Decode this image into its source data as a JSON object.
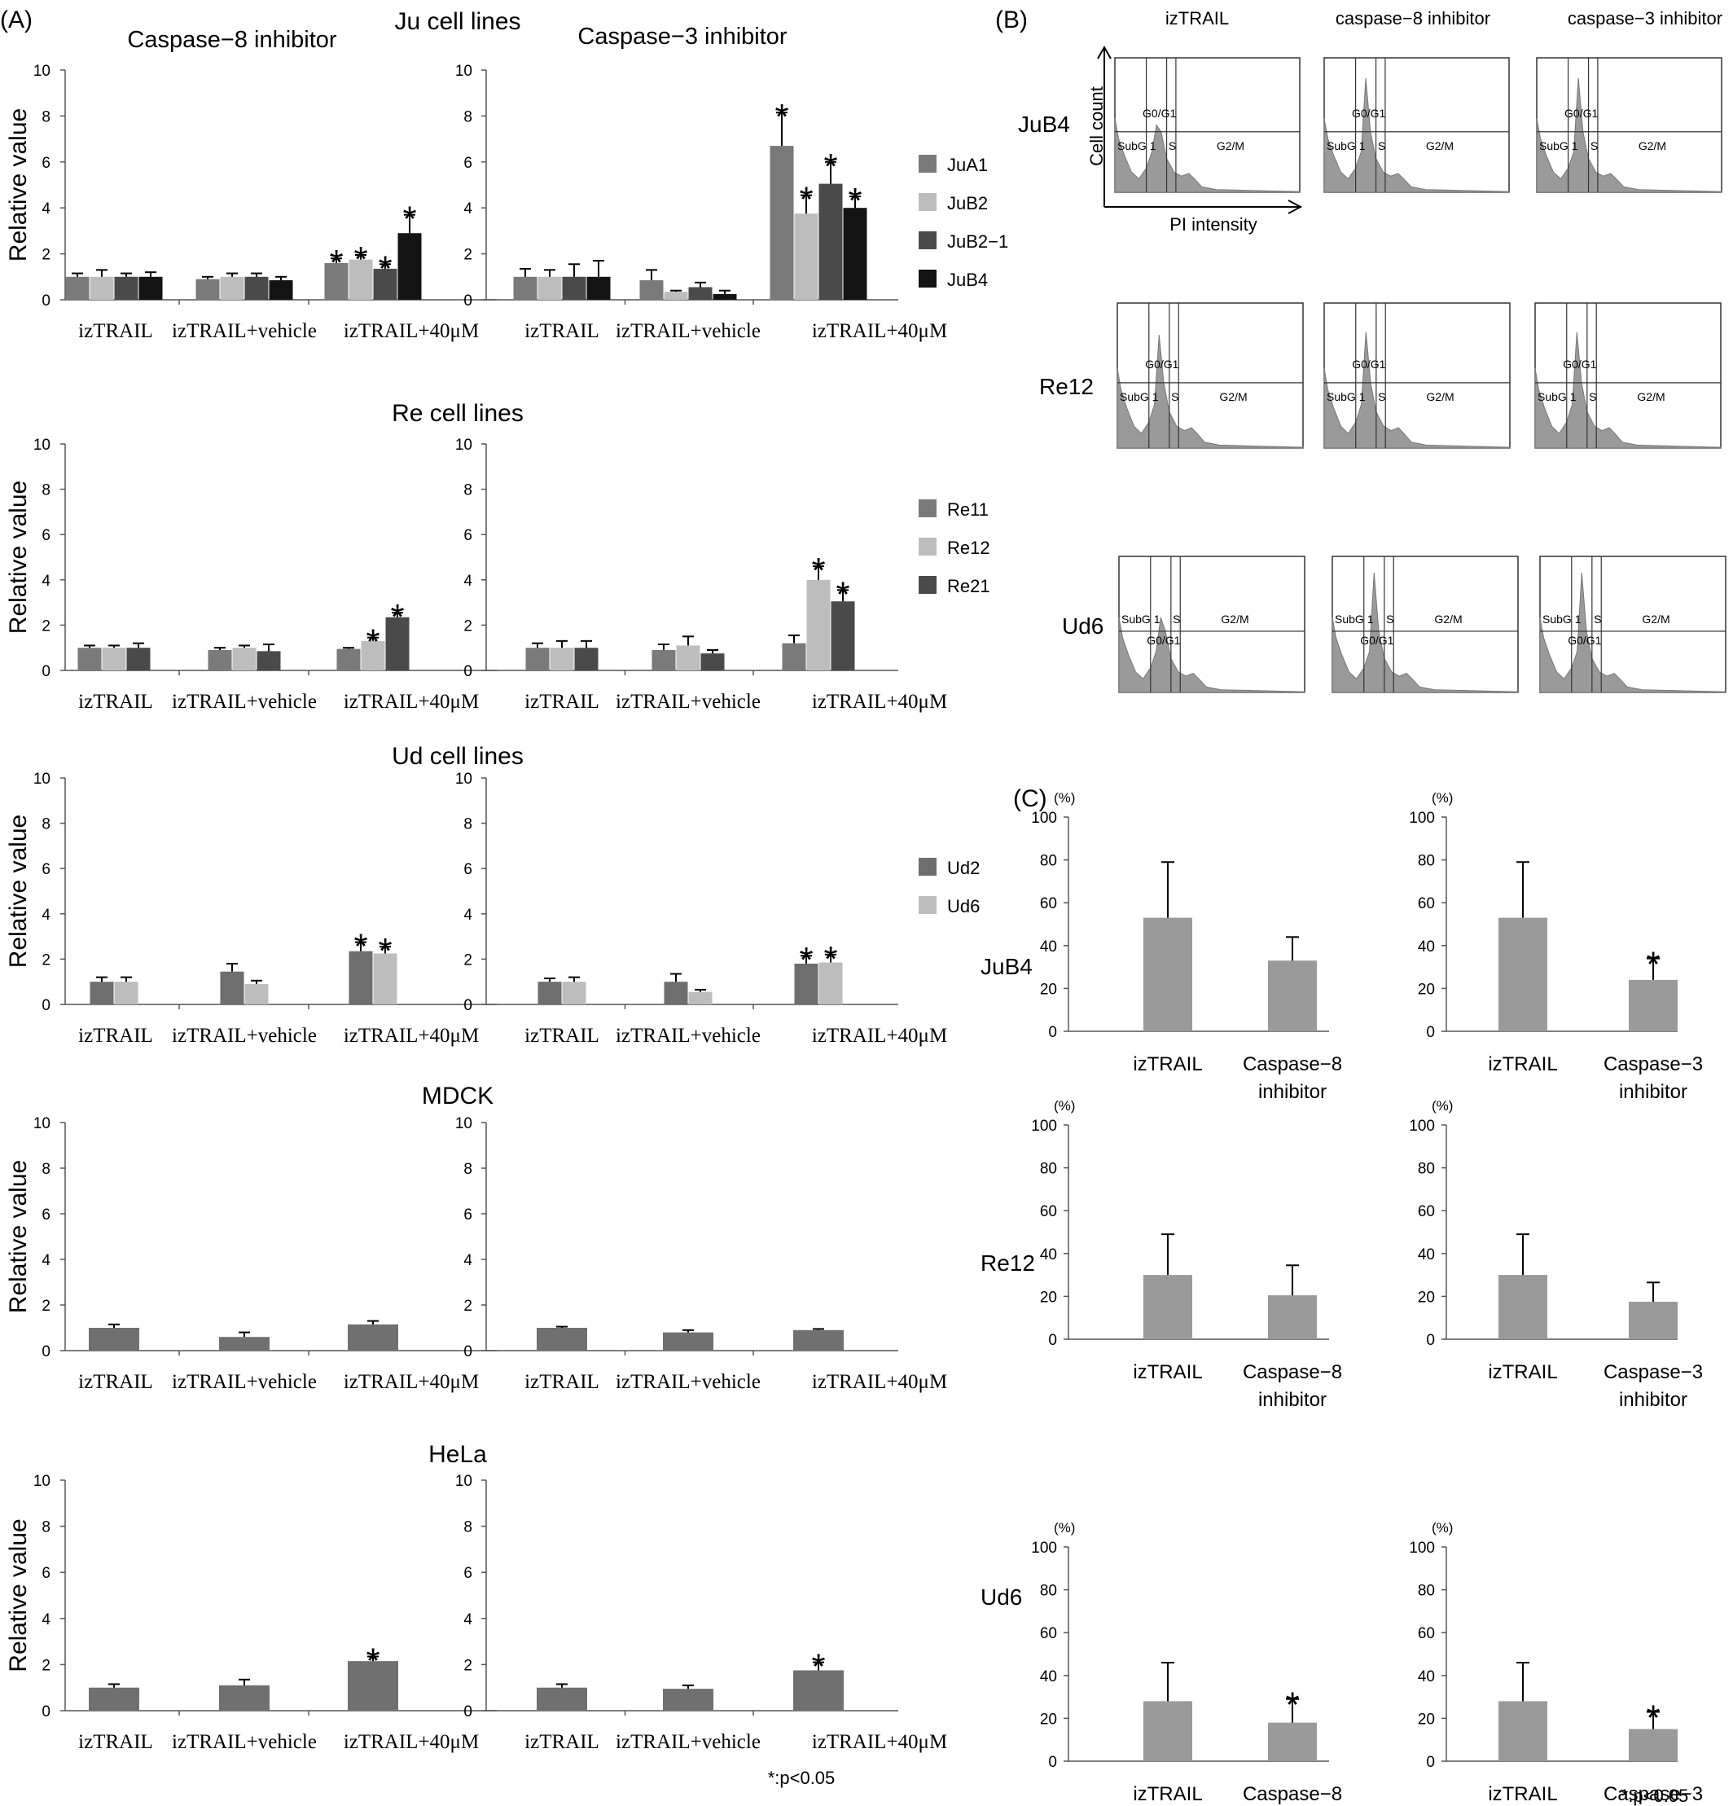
{
  "panel_labels": {
    "A": "(A)",
    "B": "(B)",
    "C": "(C)"
  },
  "inhibitor_headers": {
    "casp8": "Caspase−8  inhibitor",
    "casp3": "Caspase−3  inhibitor"
  },
  "y_axis_label": "Relative value",
  "x_categories": [
    "izTRAIL",
    "izTRAIL+vehicle",
    "izTRAIL+40μM"
  ],
  "significance_note": "*:p<0.05",
  "flow": {
    "columns": [
      "izTRAIL",
      "caspase−8  inhibitor",
      "caspase−3  inhibitor"
    ],
    "rows": [
      "JuB4",
      "Re12",
      "Ud6"
    ],
    "axis_y": "Cell count",
    "axis_x": "PI intensity",
    "gate_labels": {
      "subg1": "SubG 1",
      "g0g1": "G0/G1",
      "s": "S",
      "g2m": "G2/M"
    }
  },
  "colors": {
    "Ju": [
      "#7a7a7a",
      "#bdbdbd",
      "#4a4a4a",
      "#141414"
    ],
    "Re": [
      "#7a7a7a",
      "#bdbdbd",
      "#4a4a4a"
    ],
    "Ud": [
      "#6e6e6e",
      "#bdbdbd"
    ],
    "single": "#707070",
    "panelC": "#9a9a9a",
    "histogram": "#9a9a9a"
  },
  "chart_data": [
    {
      "id": "ju",
      "type": "bar",
      "title": "Ju cell lines",
      "ylabel": "Relative value",
      "ylim": [
        0,
        10
      ],
      "yticks": [
        0,
        2,
        4,
        6,
        8,
        10
      ],
      "categories": [
        "izTRAIL",
        "izTRAIL+vehicle",
        "izTRAIL+40μM"
      ],
      "legend": [
        "JuA1",
        "JuB2",
        "JuB2−1",
        "JuB4"
      ],
      "casp8": {
        "values": [
          [
            1.0,
            1.0,
            1.0,
            1.0
          ],
          [
            0.9,
            1.0,
            1.0,
            0.85
          ],
          [
            1.6,
            1.75,
            1.35,
            2.9
          ]
        ],
        "errors": [
          [
            0.15,
            0.3,
            0.15,
            0.2
          ],
          [
            0.1,
            0.15,
            0.15,
            0.15
          ],
          [
            0.2,
            0.2,
            0.2,
            0.8
          ]
        ],
        "sig": [
          [
            0,
            0,
            0,
            0
          ],
          [
            0,
            0,
            0,
            0
          ],
          [
            1,
            1,
            1,
            1
          ]
        ]
      },
      "casp3": {
        "values": [
          [
            1.0,
            1.0,
            1.0,
            1.0
          ],
          [
            0.85,
            0.35,
            0.55,
            0.25
          ],
          [
            6.7,
            3.75,
            5.05,
            4.0
          ]
        ],
        "errors": [
          [
            0.35,
            0.3,
            0.55,
            0.7
          ],
          [
            0.45,
            0.05,
            0.2,
            0.15
          ],
          [
            1.45,
            0.8,
            0.95,
            0.5
          ]
        ],
        "sig": [
          [
            0,
            0,
            0,
            0
          ],
          [
            0,
            0,
            0,
            0
          ],
          [
            1,
            1,
            1,
            1
          ]
        ]
      }
    },
    {
      "id": "re",
      "type": "bar",
      "title": "Re cell lines",
      "ylabel": "Relative value",
      "ylim": [
        0,
        10
      ],
      "yticks": [
        0,
        2,
        4,
        6,
        8,
        10
      ],
      "categories": [
        "izTRAIL",
        "izTRAIL+vehicle",
        "izTRAIL+40μM"
      ],
      "legend": [
        "Re11",
        "Re12",
        "Re21"
      ],
      "casp8": {
        "values": [
          [
            1.0,
            1.0,
            1.0
          ],
          [
            0.9,
            1.0,
            0.85
          ],
          [
            0.95,
            1.3,
            2.35
          ]
        ],
        "errors": [
          [
            0.1,
            0.1,
            0.2
          ],
          [
            0.1,
            0.1,
            0.3
          ],
          [
            0.05,
            0.15,
            0.2
          ]
        ],
        "sig": [
          [
            0,
            0,
            0
          ],
          [
            0,
            0,
            0
          ],
          [
            0,
            1,
            1
          ]
        ]
      },
      "casp3": {
        "values": [
          [
            1.0,
            1.0,
            1.0
          ],
          [
            0.9,
            1.1,
            0.75
          ],
          [
            1.2,
            4.0,
            3.05
          ]
        ],
        "errors": [
          [
            0.2,
            0.3,
            0.3
          ],
          [
            0.25,
            0.4,
            0.15
          ],
          [
            0.35,
            0.6,
            0.5
          ]
        ],
        "sig": [
          [
            0,
            0,
            0
          ],
          [
            0,
            0,
            0
          ],
          [
            0,
            1,
            1
          ]
        ]
      }
    },
    {
      "id": "ud",
      "type": "bar",
      "title": "Ud cell lines",
      "ylabel": "Relative value",
      "ylim": [
        0,
        10
      ],
      "yticks": [
        0,
        2,
        4,
        6,
        8,
        10
      ],
      "categories": [
        "izTRAIL",
        "izTRAIL+vehicle",
        "izTRAIL+40μM"
      ],
      "legend": [
        "Ud2",
        "Ud6"
      ],
      "casp8": {
        "values": [
          [
            1.0,
            1.0
          ],
          [
            1.45,
            0.9
          ],
          [
            2.35,
            2.25
          ]
        ],
        "errors": [
          [
            0.2,
            0.2
          ],
          [
            0.35,
            0.15
          ],
          [
            0.4,
            0.3
          ]
        ],
        "sig": [
          [
            0,
            0
          ],
          [
            0,
            0
          ],
          [
            1,
            1
          ]
        ]
      },
      "casp3": {
        "values": [
          [
            1.0,
            1.0
          ],
          [
            1.0,
            0.55
          ],
          [
            1.8,
            1.85
          ]
        ],
        "errors": [
          [
            0.15,
            0.2
          ],
          [
            0.35,
            0.1
          ],
          [
            0.35,
            0.35
          ]
        ],
        "sig": [
          [
            0,
            0
          ],
          [
            0,
            0
          ],
          [
            1,
            1
          ]
        ]
      }
    },
    {
      "id": "mdck",
      "type": "bar",
      "title": "MDCK",
      "ylabel": "Relative value",
      "ylim": [
        0,
        10
      ],
      "yticks": [
        0,
        2,
        4,
        6,
        8,
        10
      ],
      "categories": [
        "izTRAIL",
        "izTRAIL+vehicle",
        "izTRAIL+40μM"
      ],
      "legend": [],
      "casp8": {
        "values": [
          [
            1.0
          ],
          [
            0.6
          ],
          [
            1.15
          ]
        ],
        "errors": [
          [
            0.15
          ],
          [
            0.2
          ],
          [
            0.15
          ]
        ],
        "sig": [
          [
            0
          ],
          [
            0
          ],
          [
            0
          ]
        ]
      },
      "casp3": {
        "values": [
          [
            1.0
          ],
          [
            0.8
          ],
          [
            0.9
          ]
        ],
        "errors": [
          [
            0.05
          ],
          [
            0.1
          ],
          [
            0.05
          ]
        ],
        "sig": [
          [
            0
          ],
          [
            0
          ],
          [
            0
          ]
        ]
      }
    },
    {
      "id": "hela",
      "type": "bar",
      "title": "HeLa",
      "ylabel": "Relative value",
      "ylim": [
        0,
        10
      ],
      "yticks": [
        0,
        2,
        4,
        6,
        8,
        10
      ],
      "categories": [
        "izTRAIL",
        "izTRAIL+vehicle",
        "izTRAIL+40μM"
      ],
      "legend": [],
      "casp8": {
        "values": [
          [
            1.0
          ],
          [
            1.1
          ],
          [
            2.15
          ]
        ],
        "errors": [
          [
            0.15
          ],
          [
            0.25
          ],
          [
            0.2
          ]
        ],
        "sig": [
          [
            0
          ],
          [
            0
          ],
          [
            1
          ]
        ]
      },
      "casp3": {
        "values": [
          [
            1.0
          ],
          [
            0.95
          ],
          [
            1.75
          ]
        ],
        "errors": [
          [
            0.15
          ],
          [
            0.15
          ],
          [
            0.35
          ]
        ],
        "sig": [
          [
            0
          ],
          [
            0
          ],
          [
            1
          ]
        ]
      }
    },
    {
      "id": "panelC",
      "type": "bar",
      "yunit": "(%)",
      "ylim": [
        0,
        100
      ],
      "yticks": [
        0,
        20,
        40,
        60,
        80,
        100
      ],
      "rows": [
        "JuB4",
        "Re12",
        "Ud6"
      ],
      "casp8": {
        "categories": [
          "izTRAIL",
          "Caspase−8\ninhibitor"
        ],
        "values": [
          [
            53,
            33
          ],
          [
            30,
            20.5
          ],
          [
            28,
            18
          ]
        ],
        "errors": [
          [
            26,
            11
          ],
          [
            19,
            14
          ],
          [
            18,
            11
          ]
        ],
        "sig": [
          [
            0,
            0
          ],
          [
            0,
            0
          ],
          [
            0,
            1
          ]
        ]
      },
      "casp3": {
        "categories": [
          "izTRAIL",
          "Caspase−3\ninhibitor"
        ],
        "values": [
          [
            53,
            24
          ],
          [
            30,
            17.5
          ],
          [
            28,
            15
          ]
        ],
        "errors": [
          [
            26,
            10
          ],
          [
            19,
            9
          ],
          [
            18,
            8
          ]
        ],
        "sig": [
          [
            0,
            1
          ],
          [
            0,
            0
          ],
          [
            0,
            1
          ]
        ]
      }
    }
  ]
}
